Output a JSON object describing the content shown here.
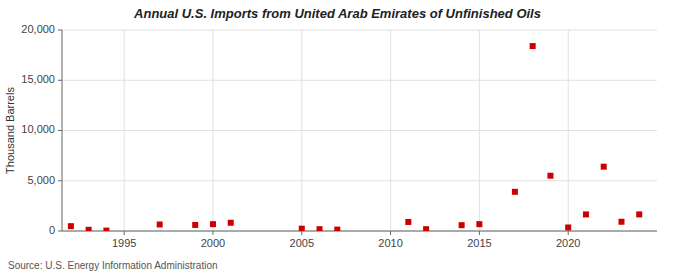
{
  "chart_data": {
    "type": "scatter",
    "title": "Annual U.S. Imports from United Arab Emirates of Unfinished Oils",
    "ylabel": "Thousand Barrels",
    "source": "Source: U.S. Energy Information Administration",
    "x": [
      1992,
      1993,
      1994,
      1997,
      1999,
      2000,
      2001,
      2005,
      2006,
      2007,
      2011,
      2012,
      2014,
      2015,
      2017,
      2018,
      2019,
      2020,
      2021,
      2022,
      2023,
      2024
    ],
    "values": [
      480,
      120,
      40,
      650,
      600,
      680,
      820,
      230,
      180,
      140,
      900,
      180,
      580,
      680,
      3900,
      18400,
      5500,
      350,
      1650,
      6400,
      920,
      1650
    ],
    "color": "#cc0000",
    "marker": "square",
    "xlim": [
      1991.5,
      2025
    ],
    "ylim": [
      0,
      20000
    ],
    "xticks": [
      1995,
      2000,
      2005,
      2010,
      2015,
      2020
    ],
    "yticks": [
      0,
      {
        "value": 5000,
        "label": "5,000"
      },
      {
        "value": 10000,
        "label": "10,000"
      },
      {
        "value": 15000,
        "label": "15,000"
      },
      {
        "value": 20000,
        "label": "20,000"
      }
    ],
    "grid": true
  }
}
